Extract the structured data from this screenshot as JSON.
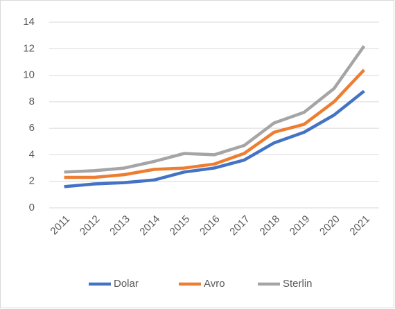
{
  "chart_data": {
    "type": "line",
    "categories": [
      "2011",
      "2012",
      "2013",
      "2014",
      "2015",
      "2016",
      "2017",
      "2018",
      "2019",
      "2020",
      "2021"
    ],
    "series": [
      {
        "name": "Dolar",
        "color": "#4472c4",
        "values": [
          1.6,
          1.8,
          1.9,
          2.1,
          2.7,
          3.0,
          3.6,
          4.9,
          5.7,
          7.0,
          8.8
        ]
      },
      {
        "name": "Avro",
        "color": "#ed7d31",
        "values": [
          2.3,
          2.3,
          2.5,
          2.9,
          3.0,
          3.3,
          4.1,
          5.7,
          6.3,
          8.0,
          10.4
        ]
      },
      {
        "name": "Sterlin",
        "color": "#a5a5a5",
        "values": [
          2.7,
          2.8,
          3.0,
          3.5,
          4.1,
          4.0,
          4.7,
          6.4,
          7.2,
          9.0,
          12.2
        ]
      }
    ],
    "ylim": [
      0,
      14
    ],
    "yticks": [
      0,
      2,
      4,
      6,
      8,
      10,
      12,
      14
    ],
    "grid": true,
    "legend": "bottom"
  }
}
